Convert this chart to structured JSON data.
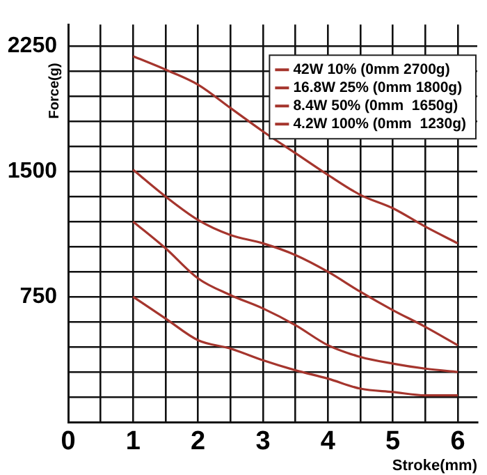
{
  "chart_data": {
    "type": "line",
    "xlabel": "Stroke(mm)",
    "ylabel": "Force(g)",
    "x": [
      1,
      1.5,
      2,
      2.5,
      3,
      3.5,
      4,
      4.5,
      5,
      5.5,
      6
    ],
    "series": [
      {
        "name": "42W 10% (0mm 2700g)",
        "color": "#a5352d",
        "values": [
          2190,
          2110,
          2020,
          1880,
          1740,
          1610,
          1480,
          1360,
          1280,
          1170,
          1070
        ]
      },
      {
        "name": "16.8W 25% (0mm 1800g)",
        "color": "#a5352d",
        "values": [
          1510,
          1350,
          1210,
          1120,
          1070,
          1000,
          900,
          780,
          670,
          570,
          460
        ]
      },
      {
        "name": "8.4W 50% (0mm  1650g)",
        "color": "#a5352d",
        "values": [
          1200,
          1040,
          860,
          760,
          680,
          580,
          460,
          390,
          350,
          320,
          300
        ]
      },
      {
        "name": "4.2W 100% (0mm  1230g)",
        "color": "#a5352d",
        "values": [
          750,
          620,
          490,
          440,
          370,
          310,
          260,
          200,
          180,
          160,
          160
        ]
      }
    ],
    "xlim": [
      0,
      6.3
    ],
    "xticks": [
      0,
      {
        "value": 0.5,
        "label": null
      },
      1,
      {
        "value": 1.5,
        "label": null
      },
      2,
      {
        "value": 2.5,
        "label": null
      },
      3,
      {
        "value": 3.5,
        "label": null
      },
      4,
      {
        "value": 4.5,
        "label": null
      },
      5,
      {
        "value": 5.5,
        "label": null
      },
      6
    ],
    "ylim": [
      0,
      2380
    ],
    "yticks": [
      {
        "value": 0,
        "label": null
      },
      {
        "value": 150,
        "label": null
      },
      {
        "value": 300,
        "label": null
      },
      {
        "value": 450,
        "label": null
      },
      {
        "value": 600,
        "label": null
      },
      750,
      {
        "value": 900,
        "label": null
      },
      {
        "value": 1050,
        "label": null
      },
      {
        "value": 1200,
        "label": null
      },
      {
        "value": 1350,
        "label": null
      },
      1500,
      {
        "value": 1650,
        "label": null
      },
      {
        "value": 1800,
        "label": null
      },
      {
        "value": 1950,
        "label": null
      },
      {
        "value": 2100,
        "label": null
      },
      2250
    ],
    "grid": true,
    "legend": "top right",
    "marker": "none",
    "line_style": "solid"
  }
}
